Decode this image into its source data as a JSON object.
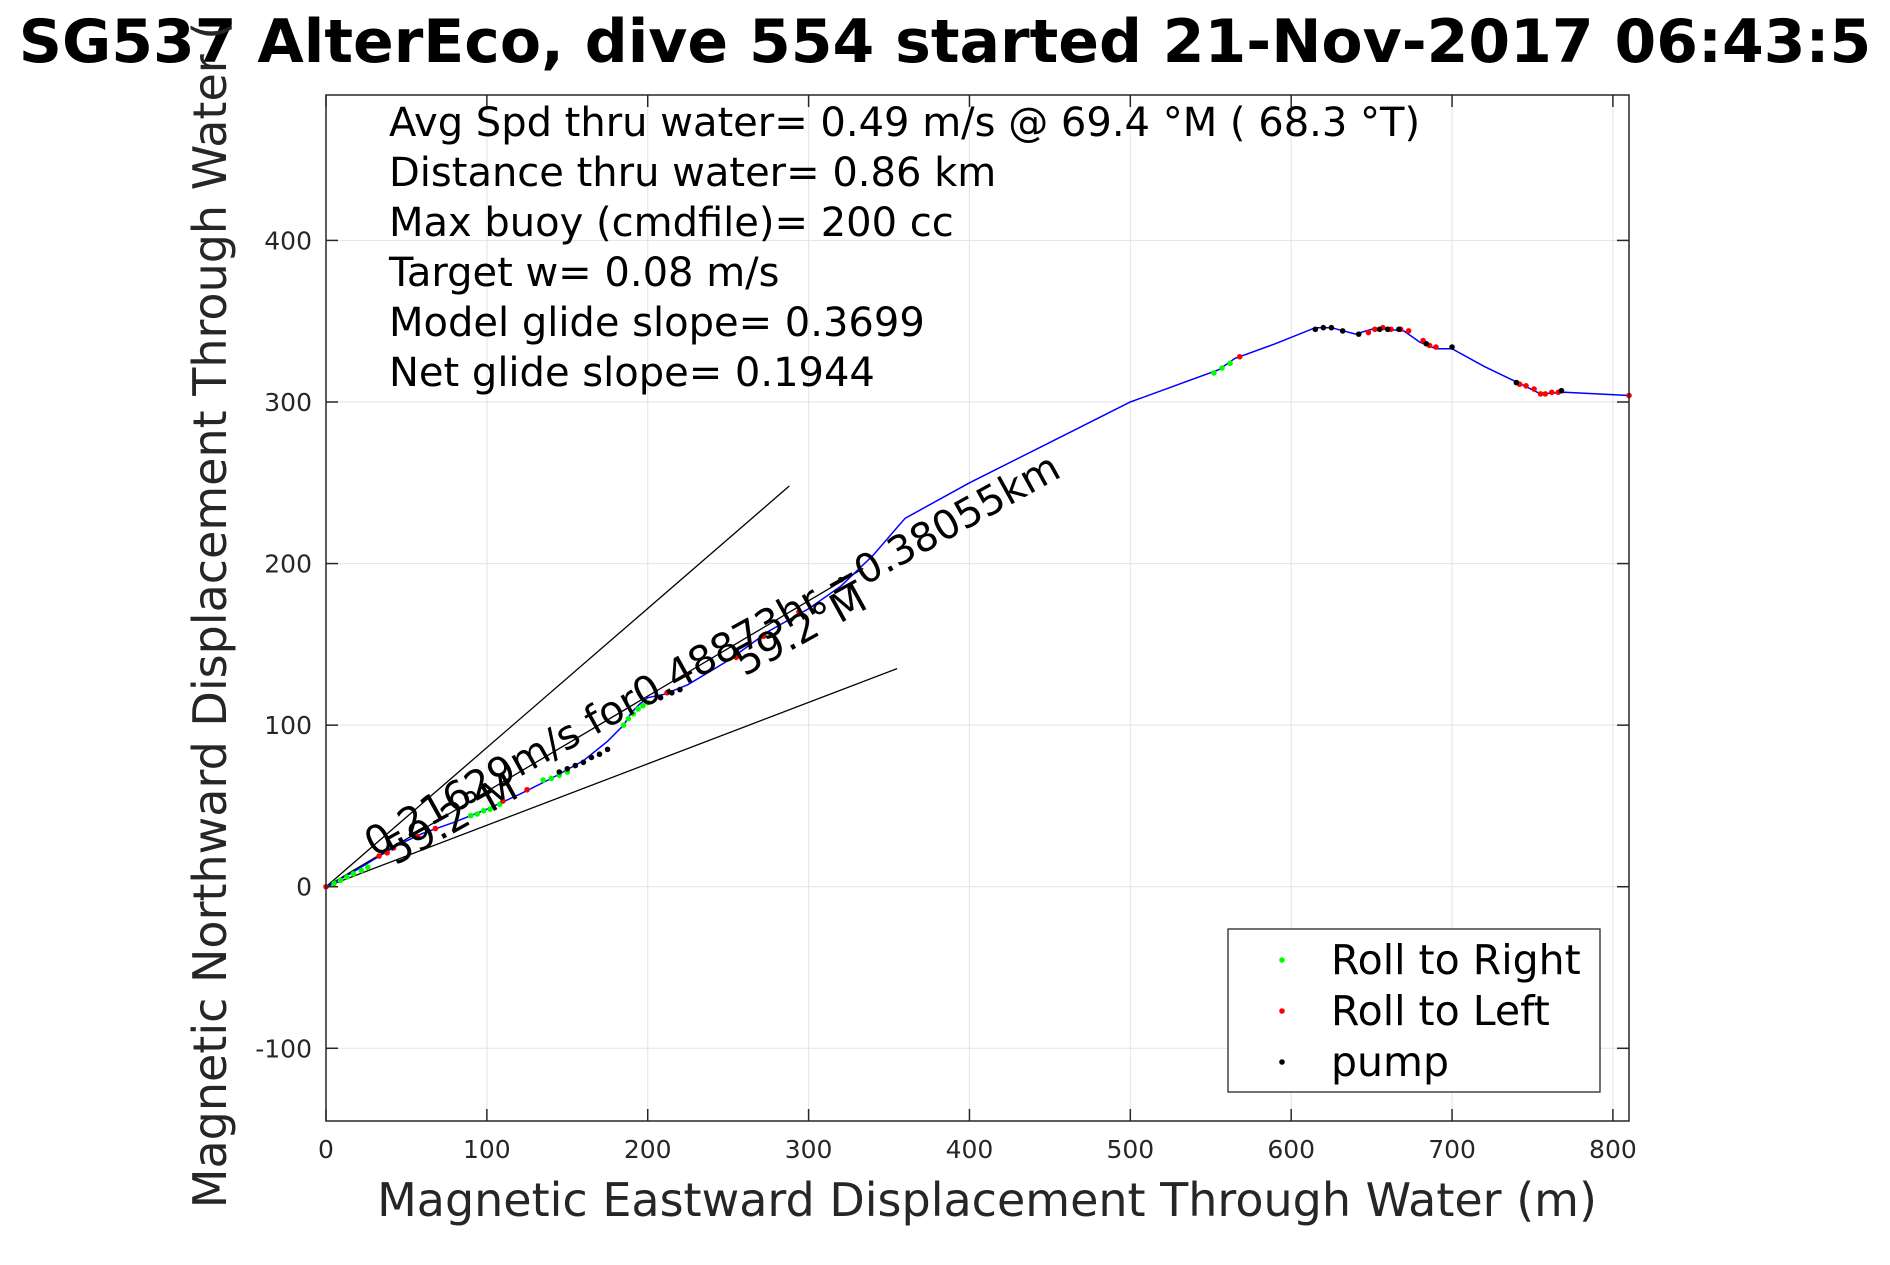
{
  "chart_data": {
    "type": "scatter",
    "title": "SG537 AlterEco, dive 554 started 21-Nov-2017 06:43:5",
    "xlabel": "Magnetic Eastward Displacement Through Water (m)",
    "ylabel": "Magnetic Northward Displacement Through Water (",
    "xlim": [
      0,
      810
    ],
    "ylim": [
      -145,
      490
    ],
    "xticks": [
      0,
      100,
      200,
      300,
      400,
      500,
      600,
      700,
      800
    ],
    "yticks": [
      -100,
      0,
      100,
      200,
      300,
      400
    ],
    "xtick_labels": [
      "0",
      "100",
      "200",
      "300",
      "400",
      "500",
      "600",
      "700",
      "800"
    ],
    "ytick_labels": [
      "-100",
      "0",
      "100",
      "200",
      "300",
      "400"
    ],
    "grid": true,
    "legend_position": "bottom-right",
    "info_lines": [
      "Avg Spd thru water=  0.49 m/s @  69.4 °M ( 68.3 °T)",
      "Distance thru water=  0.86 km",
      "Max buoy (cmdfile)= 200 cc",
      "Target w= 0.08 m/s",
      "Model glide slope= 0.3699",
      "Net glide slope= 0.1944"
    ],
    "annotations": [
      {
        "text": "0.21629m/s for0.48873hr =0.38055km",
        "x": 30,
        "y": 18,
        "angle_deg": 29
      },
      {
        "text": "59.2°M",
        "x": 43,
        "y": 13,
        "angle_deg": 29
      },
      {
        "text": "59.2°M",
        "x": 260,
        "y": 130,
        "angle_deg": 29
      }
    ],
    "guide_lines": [
      {
        "x": [
          0,
          288
        ],
        "y": [
          0,
          248
        ]
      },
      {
        "x": [
          0,
          355
        ],
        "y": [
          0,
          135
        ]
      },
      {
        "x": [
          0,
          334
        ],
        "y": [
          0,
          197
        ]
      }
    ],
    "track": {
      "name": "track",
      "color": "#0000ff",
      "x": [
        0,
        15,
        30,
        45,
        60,
        80,
        100,
        120,
        140,
        160,
        175,
        185,
        190,
        195,
        200,
        210,
        225,
        250,
        275,
        300,
        320,
        340,
        360,
        400,
        450,
        500,
        555,
        565,
        590,
        615,
        625,
        640,
        650,
        660,
        670,
        680,
        690,
        700,
        720,
        745,
        755,
        770,
        810
      ],
      "y": [
        0,
        8,
        17,
        26,
        33,
        40,
        48,
        57,
        67,
        78,
        90,
        100,
        108,
        113,
        117,
        119,
        125,
        140,
        158,
        172,
        186,
        205,
        228,
        250,
        275,
        300,
        320,
        327,
        336,
        346,
        346,
        342,
        345,
        345,
        344,
        337,
        333,
        333,
        322,
        310,
        305,
        306,
        304
      ]
    },
    "series": [
      {
        "name": "Roll to Right",
        "color": "#00ff00",
        "x": [
          5,
          9,
          13,
          17,
          22,
          26,
          90,
          94,
          98,
          102,
          108,
          135,
          140,
          145,
          150,
          185,
          188,
          191,
          194,
          197,
          200,
          552,
          557,
          562
        ],
        "y": [
          2,
          4,
          6,
          8,
          10,
          12,
          44,
          45,
          47,
          48,
          51,
          66,
          67,
          69,
          71,
          100,
          104,
          107,
          110,
          112,
          114,
          318,
          321,
          324
        ]
      },
      {
        "name": "Roll to Left",
        "color": "#ff0000",
        "x": [
          0,
          33,
          38,
          42,
          57,
          68,
          110,
          125,
          212,
          255,
          272,
          294,
          568,
          648,
          652,
          657,
          662,
          668,
          673,
          682,
          686,
          690,
          742,
          746,
          751,
          755,
          758,
          762,
          766,
          810
        ],
        "y": [
          0,
          19,
          21,
          24,
          31,
          36,
          53,
          60,
          120,
          142,
          155,
          170,
          328,
          343,
          345,
          346,
          345,
          345,
          344,
          338,
          335,
          334,
          311,
          310,
          308,
          305,
          305,
          306,
          306,
          304
        ]
      },
      {
        "name": "pump",
        "color": "#000000",
        "x": [
          145,
          150,
          155,
          160,
          165,
          170,
          175,
          208,
          215,
          220,
          320,
          615,
          620,
          625,
          632,
          642,
          655,
          660,
          667,
          684,
          700,
          740,
          768
        ],
        "y": [
          71,
          73,
          75,
          77,
          80,
          82,
          85,
          117,
          120,
          122,
          190,
          345,
          346,
          346,
          344,
          342,
          345,
          345,
          345,
          336,
          334,
          312,
          307
        ]
      }
    ]
  }
}
